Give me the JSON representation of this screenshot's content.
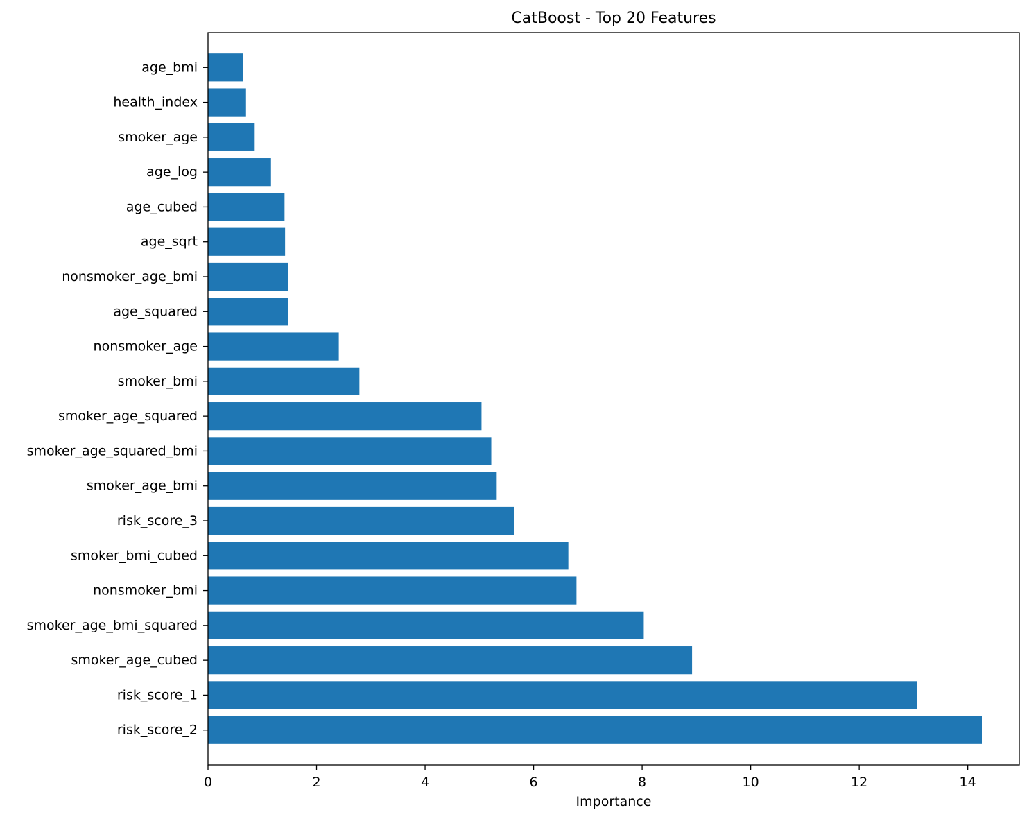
{
  "chart_data": {
    "type": "bar",
    "orientation": "horizontal",
    "title": "CatBoost - Top 20 Features",
    "xlabel": "Importance",
    "ylabel": "",
    "xlim": [
      0,
      14.95
    ],
    "xticks": [
      0,
      2,
      4,
      6,
      8,
      10,
      12,
      14
    ],
    "grid": false,
    "bar_color": "#1f77b4",
    "categories": [
      "risk_score_2",
      "risk_score_1",
      "smoker_age_cubed",
      "smoker_age_bmi_squared",
      "nonsmoker_bmi",
      "smoker_bmi_cubed",
      "risk_score_3",
      "smoker_age_bmi",
      "smoker_age_squared_bmi",
      "smoker_age_squared",
      "smoker_bmi",
      "nonsmoker_age",
      "age_squared",
      "nonsmoker_age_bmi",
      "age_sqrt",
      "age_cubed",
      "age_log",
      "smoker_age",
      "health_index",
      "age_bmi"
    ],
    "values": [
      14.26,
      13.07,
      8.92,
      8.03,
      6.79,
      6.64,
      5.64,
      5.32,
      5.22,
      5.04,
      2.79,
      2.41,
      1.48,
      1.48,
      1.42,
      1.41,
      1.16,
      0.86,
      0.7,
      0.64
    ]
  }
}
